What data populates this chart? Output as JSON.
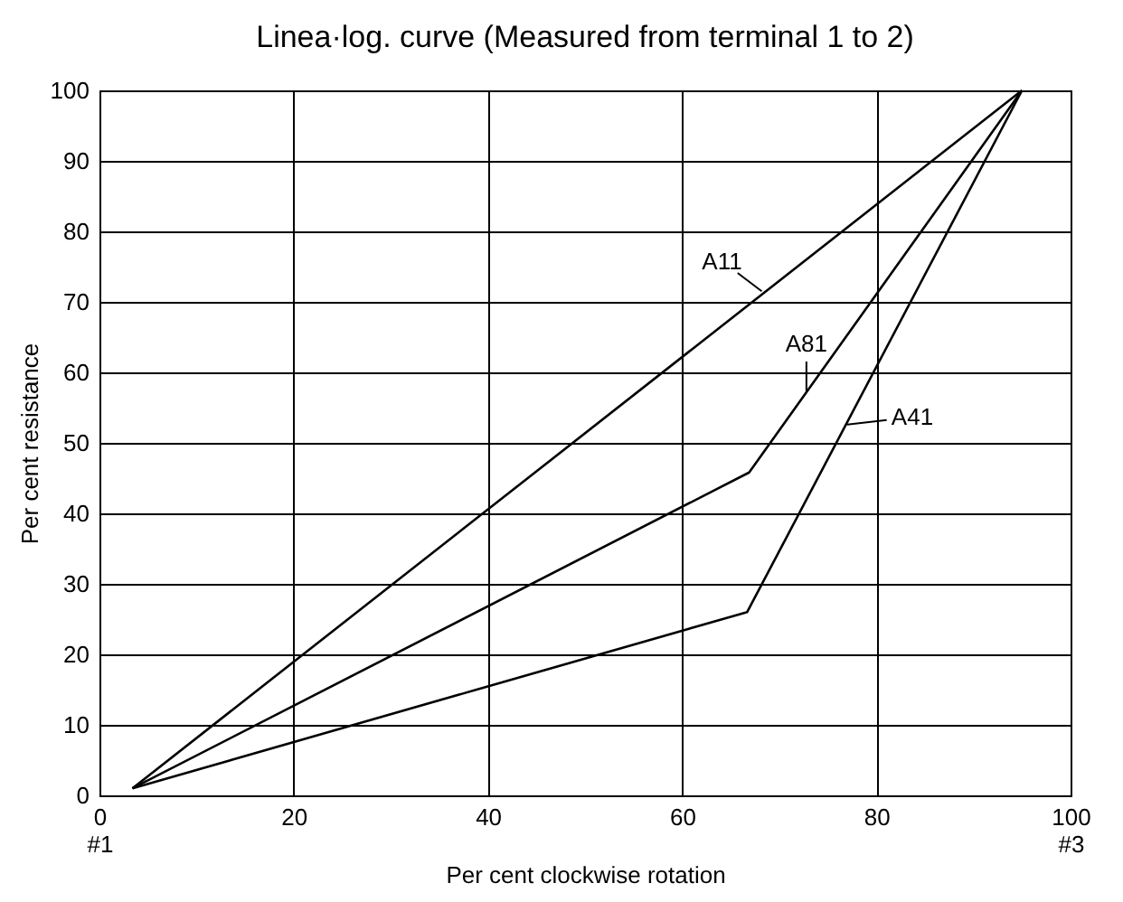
{
  "chart_data": {
    "type": "line",
    "title": "Linea·log. curve (Measured from terminal 1 to 2)",
    "xlabel": "Per cent clockwise rotation",
    "ylabel": "Per cent resistance",
    "series": [
      {
        "color": "#000000",
        "x": [
          3.4,
          95
        ],
        "values": [
          1,
          100
        ]
      },
      {
        "color": "#000000",
        "x": [
          3.4,
          66.9,
          95
        ],
        "values": [
          1,
          45.8,
          100
        ]
      },
      {
        "color": "#000000",
        "x": [
          3.4,
          66.7,
          95
        ],
        "values": [
          1,
          26,
          100
        ]
      }
    ],
    "annotations": [
      {
        "text": "A11",
        "x": 68.2,
        "y": 71.5
      },
      {
        "text": "A81",
        "x": 72.8,
        "y": 57.3
      },
      {
        "text": "A41",
        "x": 77,
        "y": 52.6
      }
    ],
    "xlim": [
      0,
      100
    ],
    "xticks": [
      {
        "value": 0,
        "label": "0\n#1"
      },
      20,
      40,
      60,
      80,
      {
        "value": 100,
        "label": "100\n#3"
      }
    ],
    "ylim": [
      0,
      100
    ],
    "yticks": [
      0,
      10,
      20,
      30,
      40,
      50,
      60,
      70,
      80,
      90,
      100
    ],
    "grid": true,
    "marker": "none",
    "line_style": "solid"
  }
}
